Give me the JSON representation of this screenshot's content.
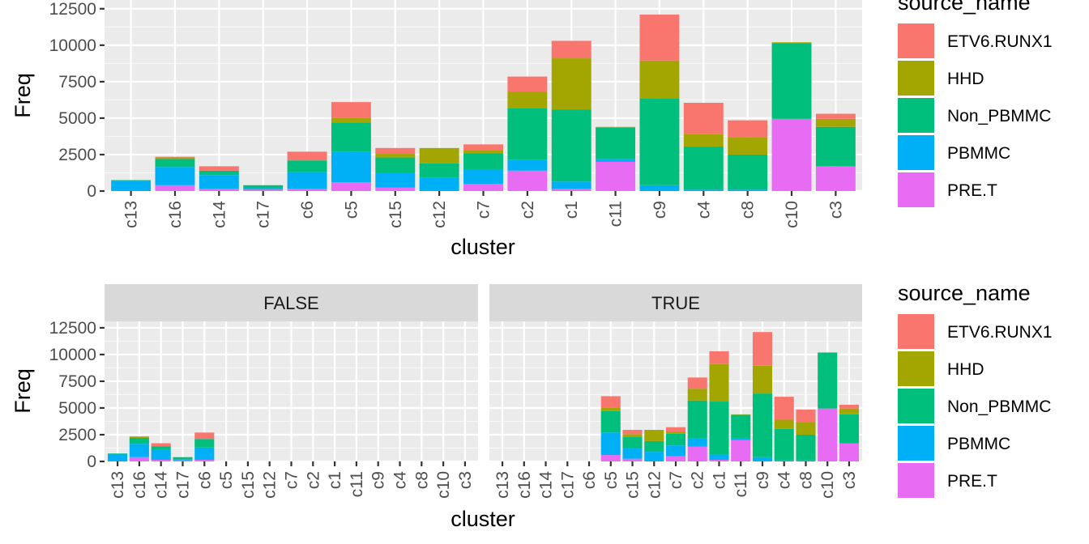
{
  "chart_data": [
    {
      "type": "bar",
      "stacked": true,
      "xlabel": "cluster",
      "ylabel": "Freq",
      "ylim": [
        0,
        12500
      ],
      "yticks": [
        0,
        2500,
        5000,
        7500,
        10000,
        12500
      ],
      "grid": true,
      "categories": [
        "c13",
        "c16",
        "c14",
        "c17",
        "c6",
        "c5",
        "c15",
        "c12",
        "c7",
        "c2",
        "c1",
        "c11",
        "c9",
        "c4",
        "c8",
        "c10",
        "c3"
      ],
      "series": [
        {
          "name": "PRE.T",
          "values": [
            0,
            400,
            150,
            100,
            150,
            600,
            250,
            0,
            500,
            1400,
            150,
            2000,
            0,
            0,
            0,
            4950,
            1700
          ]
        },
        {
          "name": "PBMMC",
          "values": [
            700,
            1250,
            950,
            100,
            1150,
            2100,
            1000,
            900,
            1000,
            750,
            500,
            200,
            400,
            100,
            100,
            0,
            0
          ]
        },
        {
          "name": "Non_PBMMC",
          "values": [
            50,
            550,
            300,
            200,
            800,
            2000,
            1050,
            1000,
            1100,
            3550,
            4950,
            2150,
            5950,
            2950,
            2400,
            5200,
            2700
          ]
        },
        {
          "name": "HHD",
          "values": [
            0,
            100,
            0,
            0,
            0,
            300,
            250,
            1050,
            200,
            1100,
            3500,
            50,
            2600,
            850,
            1200,
            50,
            550
          ]
        },
        {
          "name": "ETV6.RUNX1",
          "values": [
            0,
            50,
            300,
            0,
            600,
            1100,
            400,
            0,
            400,
            1050,
            1200,
            0,
            3150,
            2150,
            1150,
            0,
            350
          ]
        }
      ],
      "legend": {
        "title": "source_name",
        "position": "right",
        "order": [
          "ETV6.RUNX1",
          "HHD",
          "Non_PBMMC",
          "PBMMC",
          "PRE.T"
        ]
      }
    },
    {
      "type": "bar",
      "stacked": true,
      "facets": [
        "FALSE",
        "TRUE"
      ],
      "facet_clusters": {
        "FALSE": [
          "c13",
          "c16",
          "c14",
          "c17",
          "c6"
        ],
        "TRUE": [
          "c5",
          "c15",
          "c12",
          "c7",
          "c2",
          "c1",
          "c11",
          "c9",
          "c4",
          "c8",
          "c10",
          "c3"
        ]
      },
      "xlabel": "cluster",
      "ylabel": "Freq",
      "ylim": [
        0,
        12500
      ],
      "yticks": [
        0,
        2500,
        5000,
        7500,
        10000,
        12500
      ],
      "grid": true,
      "categories": [
        "c13",
        "c16",
        "c14",
        "c17",
        "c6",
        "c5",
        "c15",
        "c12",
        "c7",
        "c2",
        "c1",
        "c11",
        "c9",
        "c4",
        "c8",
        "c10",
        "c3"
      ],
      "legend": {
        "title": "source_name",
        "position": "right",
        "order": [
          "ETV6.RUNX1",
          "HHD",
          "Non_PBMMC",
          "PBMMC",
          "PRE.T"
        ]
      }
    }
  ],
  "colors": {
    "ETV6.RUNX1": "#F8766D",
    "HHD": "#A3A500",
    "Non_PBMMC": "#00BF7D",
    "PBMMC": "#00B0F6",
    "PRE.T": "#E76BF3",
    "panel_bg": "#EBEBEB",
    "grid_major": "#FFFFFF",
    "strip_bg": "#D9D9D9"
  }
}
